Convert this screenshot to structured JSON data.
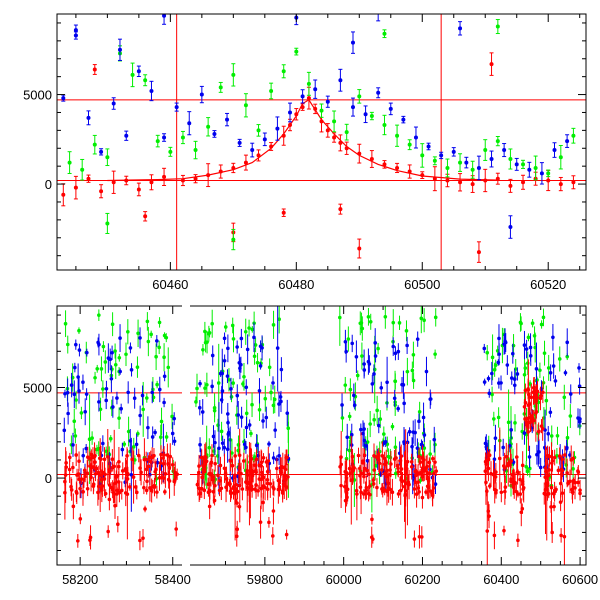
{
  "chart_data": [
    {
      "type": "scatter",
      "xlim": [
        60442,
        60526
      ],
      "ylim": [
        -4800,
        9500
      ],
      "xticks": [
        60460,
        60480,
        60500,
        60520
      ],
      "xtick_labels": [
        "60460",
        "60480",
        "60500",
        "60520"
      ],
      "yticks": [
        0,
        5000
      ],
      "ytick_labels": [
        "0",
        "5000"
      ],
      "reference_lines": {
        "horizontal": [
          200,
          4700
        ],
        "vertical": [
          60461,
          60503
        ],
        "color": "#ff0000"
      },
      "model_curve": {
        "color": "#ff0000",
        "x": [
          60450,
          60458,
          60462,
          60466,
          60470,
          60473,
          60476,
          60478,
          60480,
          60481,
          60482,
          60484,
          60486,
          60488,
          60490,
          60493,
          60496,
          60500,
          60506,
          60512
        ],
        "y": [
          200,
          250,
          300,
          500,
          800,
          1200,
          2000,
          2800,
          3800,
          4500,
          4700,
          3600,
          2800,
          2100,
          1600,
          1100,
          750,
          450,
          280,
          220
        ]
      },
      "series": [
        {
          "color": "#ff0000",
          "x": [
            60443,
            60445,
            60447,
            60449,
            60451,
            60453,
            60455,
            60457,
            60459,
            60462,
            60464,
            60466,
            60468,
            60470,
            60472,
            60474,
            60476,
            60478,
            60479,
            60480,
            60481,
            60482,
            60483,
            60484,
            60485,
            60486,
            60487,
            60488,
            60490,
            60492,
            60494,
            60496,
            60498,
            60500,
            60502,
            60504,
            60506,
            60508,
            60510,
            60512,
            60514,
            60516,
            60518,
            60520,
            60522,
            60524,
            60448,
            60456,
            60470,
            60478,
            60487,
            60490,
            60509,
            60511
          ],
          "y": [
            -600,
            -200,
            300,
            -400,
            100,
            200,
            -300,
            100,
            400,
            200,
            300,
            500,
            700,
            900,
            1200,
            1600,
            2100,
            2700,
            3300,
            3900,
            4300,
            4800,
            4200,
            3500,
            3000,
            2600,
            2300,
            2000,
            1700,
            1400,
            1100,
            900,
            700,
            500,
            300,
            200,
            100,
            0,
            200,
            300,
            -100,
            100,
            300,
            200,
            0,
            100,
            6400,
            -1800,
            -2700,
            -1600,
            -1400,
            -3600,
            -3800,
            6700
          ]
        },
        {
          "color": "#00ee00",
          "x": [
            60444,
            60446,
            60448,
            60450,
            60452,
            60454,
            60456,
            60458,
            60460,
            60462,
            60464,
            60466,
            60468,
            60470,
            60472,
            60474,
            60476,
            60478,
            60480,
            60482,
            60484,
            60486,
            60488,
            60490,
            60492,
            60494,
            60496,
            60498,
            60500,
            60502,
            60504,
            60506,
            60508,
            60510,
            60512,
            60514,
            60516,
            60518,
            60520,
            60522,
            60524,
            60450,
            60470,
            60494,
            60512
          ],
          "y": [
            1200,
            800,
            2200,
            1500,
            7300,
            6100,
            5800,
            2400,
            1800,
            2600,
            1900,
            3200,
            5400,
            6100,
            4400,
            3000,
            5200,
            6300,
            7400,
            5600,
            4100,
            3500,
            2900,
            4900,
            3800,
            3300,
            2700,
            2200,
            1600,
            1300,
            900,
            1200,
            800,
            1900,
            2400,
            1400,
            1100,
            900,
            600,
            1500,
            2700,
            -2200,
            -3100,
            8400,
            8800
          ]
        },
        {
          "color": "#0000ee",
          "x": [
            60443,
            60445,
            60447,
            60449,
            60451,
            60453,
            60455,
            60457,
            60459,
            60461,
            60463,
            60465,
            60467,
            60469,
            60471,
            60473,
            60475,
            60477,
            60479,
            60481,
            60483,
            60485,
            60487,
            60489,
            60491,
            60493,
            60495,
            60497,
            60499,
            60501,
            60503,
            60505,
            60507,
            60509,
            60511,
            60513,
            60515,
            60517,
            60519,
            60521,
            60523,
            60445,
            60452,
            60459,
            60480,
            60489,
            60493,
            60506,
            60514
          ],
          "y": [
            4800,
            8600,
            3700,
            1800,
            4500,
            2700,
            6300,
            5200,
            2600,
            4300,
            3400,
            5000,
            2800,
            3600,
            2300,
            1900,
            2500,
            3100,
            4000,
            4900,
            5300,
            4600,
            5800,
            4300,
            3900,
            5100,
            4200,
            3600,
            2600,
            2100,
            1600,
            1800,
            1200,
            900,
            1400,
            1900,
            1100,
            800,
            600,
            1900,
            2400,
            8300,
            7500,
            9400,
            9300,
            7900,
            9600,
            8700,
            -2400
          ]
        }
      ]
    },
    {
      "type": "scatter",
      "xlim": [
        58150,
        60615
      ],
      "ylim": [
        -4800,
        9500
      ],
      "xticks": [
        58200,
        58400,
        59800,
        60000,
        60200,
        60400,
        60600
      ],
      "xtick_labels": [
        "58200",
        "58400",
        "59800",
        "60000",
        "60200",
        "60400",
        "60600"
      ],
      "yticks": [
        0,
        5000
      ],
      "ytick_labels": [
        "0",
        "5000"
      ],
      "reference_lines": {
        "horizontal": [
          200,
          4700
        ],
        "color": "#ff0000"
      },
      "observing_seasons": [
        [
          58165,
          58410
        ],
        [
          59625,
          59860
        ],
        [
          59990,
          60235
        ],
        [
          60355,
          60600
        ]
      ]
    }
  ]
}
